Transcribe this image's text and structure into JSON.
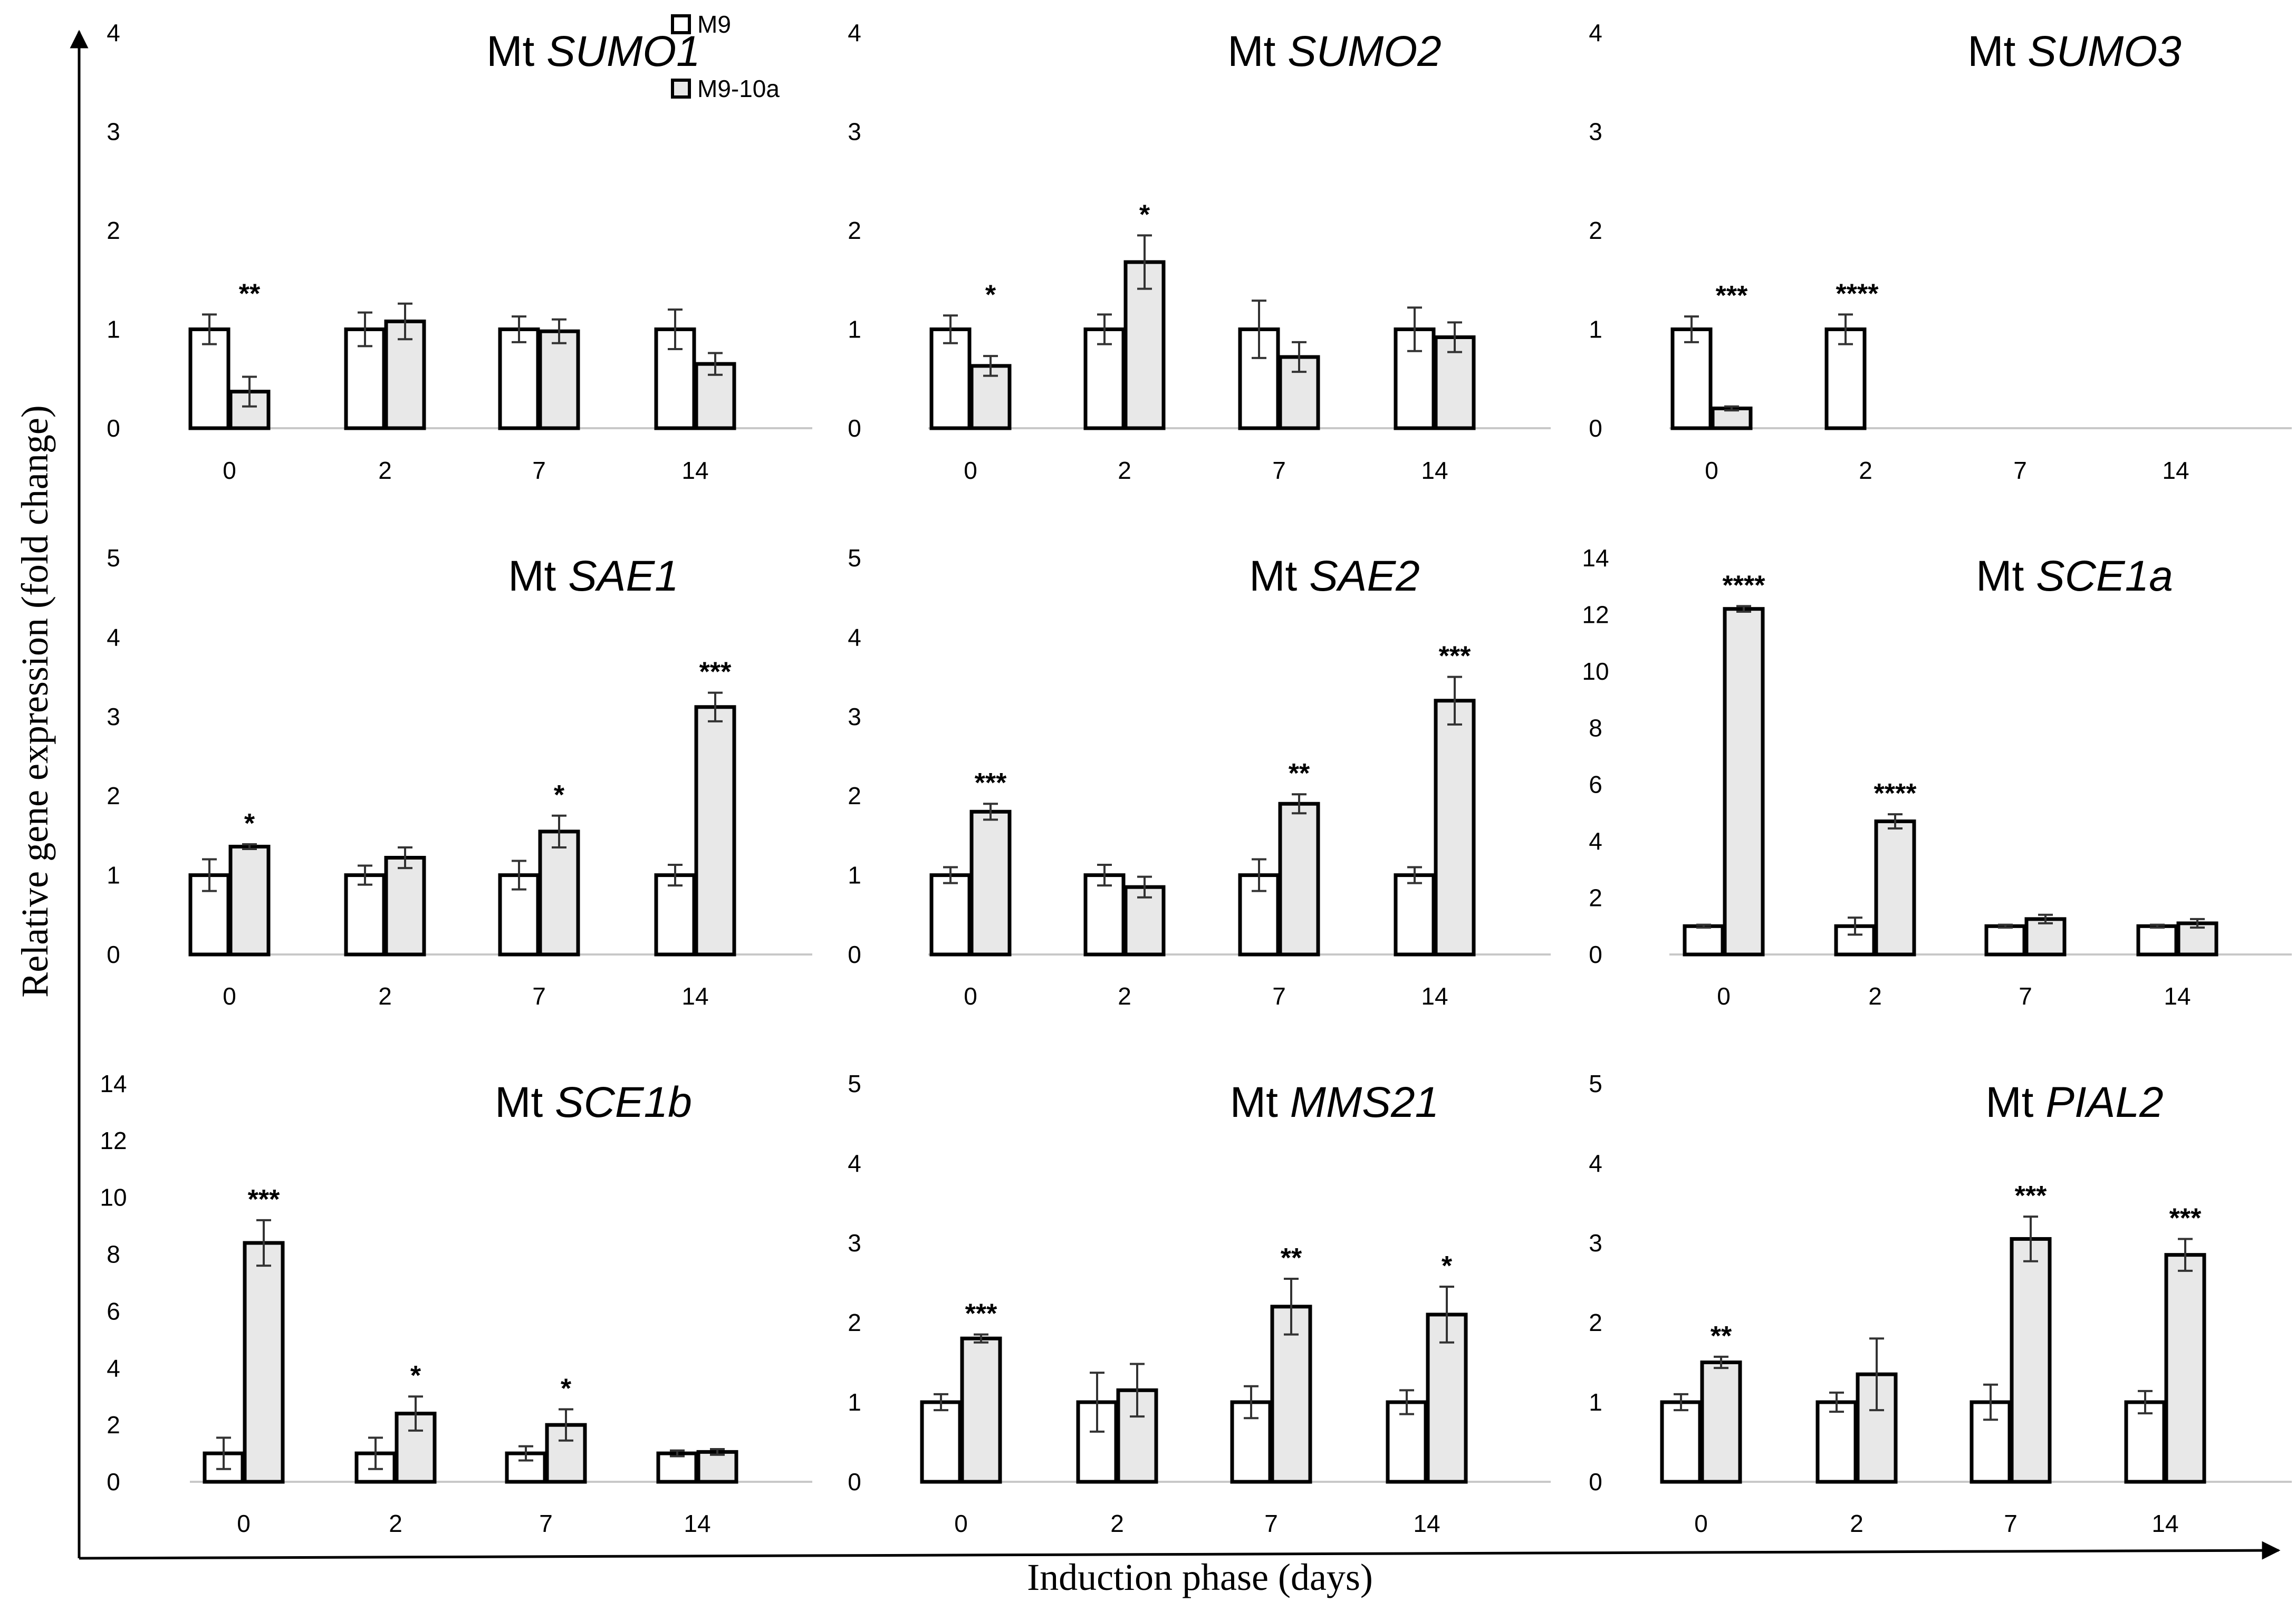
{
  "figure": {
    "x_axis_title": "Induction phase (days)",
    "y_axis_title": "Relative gene expression (fold change)",
    "legend": [
      {
        "label": "M9",
        "color": "#ffffff"
      },
      {
        "label": "M9-10a",
        "color": "#e8e8e8"
      }
    ]
  },
  "chart_data": [
    {
      "type": "bar",
      "title_prefix": "Mt ",
      "title_gene": "SUMO1",
      "ylim": [
        0,
        4
      ],
      "yticks": [
        0,
        1,
        2,
        3,
        4
      ],
      "categories": [
        "0",
        "2",
        "7",
        "14"
      ],
      "series": [
        {
          "name": "M9",
          "values": [
            1.0,
            1.0,
            1.0,
            1.0
          ],
          "errors": [
            0.15,
            0.17,
            0.13,
            0.2
          ]
        },
        {
          "name": "M9-10a",
          "values": [
            0.37,
            1.08,
            0.98,
            0.65
          ],
          "errors": [
            0.15,
            0.18,
            0.12,
            0.11
          ]
        }
      ],
      "significance": [
        "**",
        "",
        "",
        ""
      ]
    },
    {
      "type": "bar",
      "title_prefix": "Mt ",
      "title_gene": "SUMO2",
      "ylim": [
        0,
        4
      ],
      "yticks": [
        0,
        1,
        2,
        3,
        4
      ],
      "categories": [
        "0",
        "2",
        "7",
        "14"
      ],
      "series": [
        {
          "name": "M9",
          "values": [
            1.0,
            1.0,
            1.0,
            1.0
          ],
          "errors": [
            0.14,
            0.15,
            0.29,
            0.22
          ]
        },
        {
          "name": "M9-10a",
          "values": [
            0.63,
            1.68,
            0.72,
            0.92
          ],
          "errors": [
            0.1,
            0.27,
            0.15,
            0.15
          ]
        }
      ],
      "significance": [
        "*",
        "*",
        "",
        ""
      ]
    },
    {
      "type": "bar",
      "title_prefix": "Mt ",
      "title_gene": "SUMO3",
      "ylim": [
        0,
        4
      ],
      "yticks": [
        0,
        1,
        2,
        3,
        4
      ],
      "categories": [
        "0",
        "2",
        "7",
        "14"
      ],
      "series": [
        {
          "name": "M9",
          "values": [
            1.0,
            1.0,
            null,
            null
          ],
          "errors": [
            0.13,
            0.15,
            0,
            0
          ]
        },
        {
          "name": "M9-10a",
          "values": [
            0.2,
            null,
            null,
            null
          ],
          "errors": [
            0.02,
            0,
            0,
            0
          ]
        }
      ],
      "significance": [
        "***",
        "****",
        "",
        ""
      ]
    },
    {
      "type": "bar",
      "title_prefix": "Mt ",
      "title_gene": "SAE1",
      "ylim": [
        0,
        5
      ],
      "yticks": [
        0,
        1,
        2,
        3,
        4,
        5
      ],
      "categories": [
        "0",
        "2",
        "7",
        "14"
      ],
      "series": [
        {
          "name": "M9",
          "values": [
            1.0,
            1.0,
            1.0,
            1.0
          ],
          "errors": [
            0.2,
            0.12,
            0.18,
            0.13
          ]
        },
        {
          "name": "M9-10a",
          "values": [
            1.36,
            1.22,
            1.55,
            3.12
          ],
          "errors": [
            0.03,
            0.13,
            0.2,
            0.18
          ]
        }
      ],
      "significance": [
        "*",
        "",
        "*",
        "***"
      ]
    },
    {
      "type": "bar",
      "title_prefix": "Mt ",
      "title_gene": "SAE2",
      "ylim": [
        0,
        5
      ],
      "yticks": [
        0,
        1,
        2,
        3,
        4,
        5
      ],
      "categories": [
        "0",
        "2",
        "7",
        "14"
      ],
      "series": [
        {
          "name": "M9",
          "values": [
            1.0,
            1.0,
            1.0,
            1.0
          ],
          "errors": [
            0.1,
            0.13,
            0.2,
            0.1
          ]
        },
        {
          "name": "M9-10a",
          "values": [
            1.8,
            0.85,
            1.9,
            3.2
          ],
          "errors": [
            0.1,
            0.13,
            0.12,
            0.3
          ]
        }
      ],
      "significance": [
        "***",
        "",
        "**",
        "***"
      ]
    },
    {
      "type": "bar",
      "title_prefix": "Mt ",
      "title_gene": "SCE1a",
      "ylim": [
        0,
        14
      ],
      "yticks": [
        0,
        2,
        4,
        6,
        8,
        10,
        12,
        14
      ],
      "categories": [
        "0",
        "2",
        "7",
        "14"
      ],
      "series": [
        {
          "name": "M9",
          "values": [
            1.0,
            1.0,
            1.0,
            1.0
          ],
          "errors": [
            0.05,
            0.3,
            0.05,
            0.05
          ]
        },
        {
          "name": "M9-10a",
          "values": [
            12.2,
            4.7,
            1.25,
            1.1
          ],
          "errors": [
            0.1,
            0.25,
            0.15,
            0.15
          ]
        }
      ],
      "significance": [
        "****",
        "****",
        "",
        ""
      ]
    },
    {
      "type": "bar",
      "title_prefix": "Mt ",
      "title_gene": "SCE1b",
      "ylim": [
        0,
        14
      ],
      "yticks": [
        0,
        2,
        4,
        6,
        8,
        10,
        12,
        14
      ],
      "categories": [
        "0",
        "2",
        "7",
        "14"
      ],
      "series": [
        {
          "name": "M9",
          "values": [
            1.0,
            1.0,
            1.0,
            1.0
          ],
          "errors": [
            0.55,
            0.55,
            0.25,
            0.1
          ]
        },
        {
          "name": "M9-10a",
          "values": [
            8.4,
            2.4,
            2.0,
            1.05
          ],
          "errors": [
            0.8,
            0.6,
            0.55,
            0.1
          ]
        }
      ],
      "significance": [
        "***",
        "*",
        "*",
        ""
      ]
    },
    {
      "type": "bar",
      "title_prefix": "Mt ",
      "title_gene": "MMS21",
      "ylim": [
        0,
        5
      ],
      "yticks": [
        0,
        1,
        2,
        3,
        4,
        5
      ],
      "categories": [
        "0",
        "2",
        "7",
        "14"
      ],
      "series": [
        {
          "name": "M9",
          "values": [
            1.0,
            1.0,
            1.0,
            1.0
          ],
          "errors": [
            0.1,
            0.37,
            0.2,
            0.15
          ]
        },
        {
          "name": "M9-10a",
          "values": [
            1.8,
            1.15,
            2.2,
            2.1
          ],
          "errors": [
            0.05,
            0.33,
            0.35,
            0.35
          ]
        }
      ],
      "significance": [
        "***",
        "",
        "**",
        "*"
      ]
    },
    {
      "type": "bar",
      "title_prefix": "Mt ",
      "title_gene": "PIAL2",
      "ylim": [
        0,
        5
      ],
      "yticks": [
        0,
        1,
        2,
        3,
        4,
        5
      ],
      "categories": [
        "0",
        "2",
        "7",
        "14"
      ],
      "series": [
        {
          "name": "M9",
          "values": [
            1.0,
            1.0,
            1.0,
            1.0
          ],
          "errors": [
            0.1,
            0.12,
            0.22,
            0.14
          ]
        },
        {
          "name": "M9-10a",
          "values": [
            1.5,
            1.35,
            3.05,
            2.85
          ],
          "errors": [
            0.07,
            0.45,
            0.28,
            0.2
          ]
        }
      ],
      "significance": [
        "**",
        "",
        "***",
        "***"
      ]
    }
  ]
}
